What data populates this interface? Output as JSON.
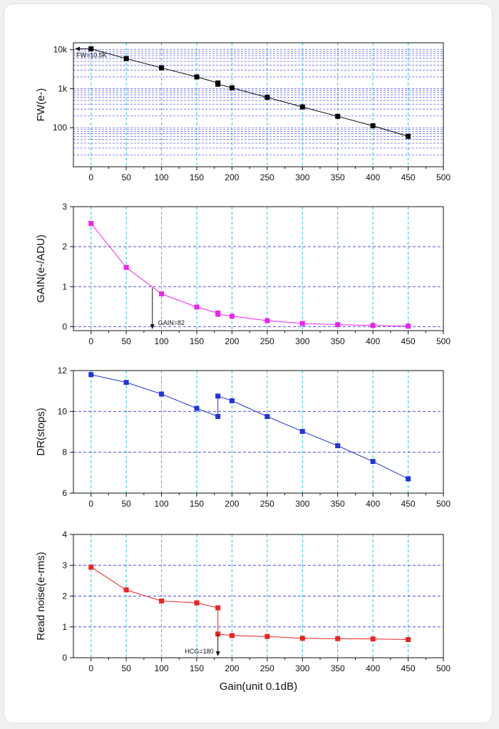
{
  "chart_data": [
    {
      "type": "line",
      "ylabel": "FW(e-)",
      "yscale": "log",
      "ylim": [
        10,
        15000
      ],
      "yticks": [
        {
          "v": 100,
          "label": "100"
        },
        {
          "v": 1000,
          "label": "1k"
        },
        {
          "v": 10000,
          "label": "10k"
        }
      ],
      "xlim": [
        -25,
        500
      ],
      "xticks": [
        0,
        50,
        100,
        150,
        200,
        250,
        300,
        350,
        400,
        450,
        500
      ],
      "color": "#000000",
      "grid": true,
      "series": [
        {
          "x": [
            0,
            50,
            100,
            150,
            180,
            180,
            200,
            250,
            300,
            350,
            400,
            450
          ],
          "y": [
            10500,
            5900,
            3400,
            2000,
            1400,
            1300,
            1050,
            600,
            340,
            195,
            112,
            60
          ]
        }
      ],
      "annotation": {
        "text": "FW=10.5K",
        "x": 0,
        "y": 10500,
        "type": "arrow-left"
      }
    },
    {
      "type": "line",
      "ylabel": "GAIN(e-/ADU)",
      "ylim": [
        -0.1,
        3
      ],
      "yticks": [
        {
          "v": 0,
          "label": "0"
        },
        {
          "v": 1,
          "label": "1"
        },
        {
          "v": 2,
          "label": "2"
        },
        {
          "v": 3,
          "label": "3"
        }
      ],
      "xlim": [
        -25,
        500
      ],
      "xticks": [
        0,
        50,
        100,
        150,
        200,
        250,
        300,
        350,
        400,
        450,
        500
      ],
      "color": "#ee22ee",
      "grid": true,
      "series": [
        {
          "x": [
            0,
            50,
            100,
            150,
            180,
            180,
            200,
            250,
            300,
            350,
            400,
            450
          ],
          "y": [
            2.58,
            1.48,
            0.82,
            0.49,
            0.34,
            0.31,
            0.26,
            0.15,
            0.08,
            0.05,
            0.03,
            0.015
          ]
        }
      ],
      "annotation": {
        "text": "GAIN=82",
        "x": 87,
        "y": 0.97,
        "type": "arrow-down"
      }
    },
    {
      "type": "line",
      "ylabel": "DR(stops)",
      "ylim": [
        6,
        12
      ],
      "yticks": [
        {
          "v": 6,
          "label": "6"
        },
        {
          "v": 8,
          "label": "8"
        },
        {
          "v": 10,
          "label": "10"
        },
        {
          "v": 12,
          "label": "12"
        }
      ],
      "xlim": [
        -25,
        500
      ],
      "xticks": [
        0,
        50,
        100,
        150,
        200,
        250,
        300,
        350,
        400,
        450,
        500
      ],
      "color": "#2233dd",
      "grid": true,
      "series": [
        {
          "x": [
            0,
            50,
            100,
            150,
            180,
            180,
            200,
            250,
            300,
            350,
            400,
            450
          ],
          "y": [
            11.8,
            11.42,
            10.85,
            10.15,
            9.75,
            10.75,
            10.52,
            9.75,
            9.02,
            8.32,
            7.55,
            6.7
          ]
        }
      ]
    },
    {
      "type": "line",
      "ylabel": "Read noise(e-rms)",
      "xlabel": "Gain(unit 0.1dB)",
      "ylim": [
        0,
        4
      ],
      "yticks": [
        {
          "v": 0,
          "label": "0"
        },
        {
          "v": 1,
          "label": "1"
        },
        {
          "v": 2,
          "label": "2"
        },
        {
          "v": 3,
          "label": "3"
        },
        {
          "v": 4,
          "label": "4"
        }
      ],
      "xlim": [
        -25,
        500
      ],
      "xticks": [
        0,
        50,
        100,
        150,
        200,
        250,
        300,
        350,
        400,
        450,
        500
      ],
      "color": "#ee2222",
      "grid": true,
      "series": [
        {
          "x": [
            0,
            50,
            100,
            150,
            180,
            180,
            200,
            250,
            300,
            350,
            400,
            450
          ],
          "y": [
            2.94,
            2.2,
            1.84,
            1.78,
            1.62,
            0.77,
            0.72,
            0.69,
            0.63,
            0.62,
            0.61,
            0.59
          ]
        }
      ],
      "annotation": {
        "text": "HCG=180",
        "x": 180,
        "y": 0.77,
        "type": "arrow-down"
      }
    }
  ]
}
